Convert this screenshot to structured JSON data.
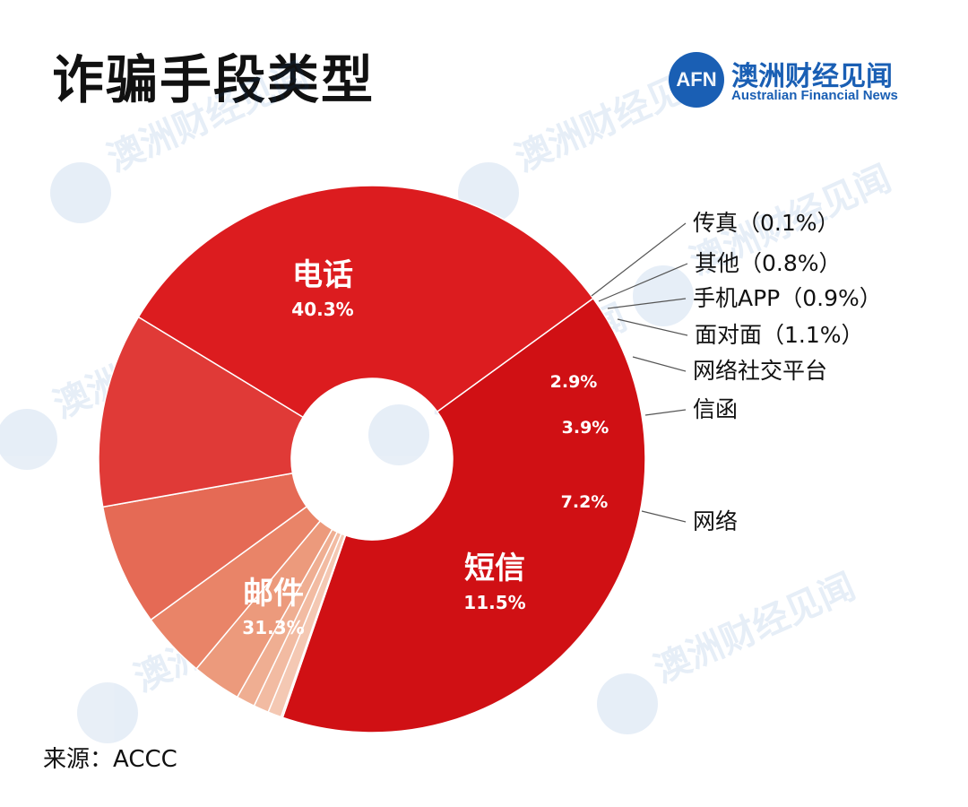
{
  "title": "诈骗手段类型",
  "brand": {
    "badge": "AFN",
    "name_cn": "澳洲财经见闻",
    "name_en": "Australian Financial News",
    "color": "#1a5fb4"
  },
  "source": "来源：ACCC",
  "chart_data": {
    "type": "pie",
    "donut": true,
    "slices": [
      {
        "name": "电话",
        "value": 40.3,
        "label": "40.3%",
        "color": "#d01014"
      },
      {
        "name": "其它",
        "value": 0.1,
        "label": "传真（0.1%）",
        "color": "#f6d4c4"
      },
      {
        "name": "其它",
        "value": 0.8,
        "label": "其他（0.8%）",
        "color": "#f4c8b3"
      },
      {
        "name": "其它",
        "value": 0.9,
        "label": "手机APP（0.9%）",
        "color": "#f2bba2"
      },
      {
        "name": "其它",
        "value": 1.1,
        "label": "面对面（1.1%）",
        "color": "#efae92"
      },
      {
        "name": "网络社交平台",
        "value": 2.9,
        "label": "2.9%",
        "color": "#ec9a7c"
      },
      {
        "name": "信函",
        "value": 3.9,
        "label": "3.9%",
        "color": "#e98468"
      },
      {
        "name": "网络",
        "value": 7.2,
        "label": "7.2%",
        "color": "#e56a55"
      },
      {
        "name": "短信",
        "value": 11.5,
        "label": "11.5%",
        "color": "#e03a37"
      },
      {
        "name": "邮件",
        "value": 31.3,
        "label": "31.3%",
        "color": "#dc1c1f"
      }
    ],
    "inside_labels": [
      {
        "name": "电话",
        "value": "40.3%"
      },
      {
        "name": "邮件",
        "value": "31.3%"
      },
      {
        "name": "短信",
        "value": "11.5%"
      }
    ],
    "outside_labels": [
      "传真（0.1%）",
      "其他（0.8%）",
      "手机APP（0.9%）",
      "面对面（1.1%）",
      "网络社交平台",
      "信函",
      "网络"
    ],
    "value_labels_inside": [
      "2.9%",
      "3.9%",
      "7.2%"
    ]
  }
}
